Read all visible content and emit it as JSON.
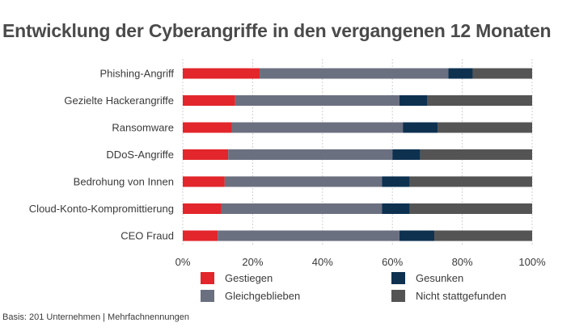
{
  "title": "Entwicklung der Cyberangriffe in den vergangenen 12 Monaten",
  "footnote": "Basis: 201 Unternehmen | Mehrfachnennungen",
  "colors": {
    "gestiegen": "#e2262b",
    "gleichgeblieben": "#6b7080",
    "gesunken": "#0e3150",
    "nicht_stattgefunden": "#545454",
    "grid": "#d0d0d0"
  },
  "legend": [
    {
      "label": "Gestiegen",
      "color_key": "gestiegen"
    },
    {
      "label": "Gesunken",
      "color_key": "gesunken"
    },
    {
      "label": "Gleichgeblieben",
      "color_key": "gleichgeblieben"
    },
    {
      "label": "Nicht stattgefunden",
      "color_key": "nicht_stattgefunden"
    }
  ],
  "chart_data": {
    "type": "bar",
    "orientation": "horizontal",
    "stacked": true,
    "title": "Entwicklung der Cyberangriffe in den vergangenen 12 Monaten",
    "categories": [
      "Phishing-Angriff",
      "Gezielte Hackerangriffe",
      "Ransomware",
      "DDoS-Angriffe",
      "Bedrohung von Innen",
      "Cloud-Konto-Kompromittierung",
      "CEO Fraud"
    ],
    "series": [
      {
        "name": "Gestiegen",
        "color_key": "gestiegen",
        "values": [
          22,
          15,
          14,
          13,
          12,
          11,
          10
        ]
      },
      {
        "name": "Gleichgeblieben",
        "color_key": "gleichgeblieben",
        "values": [
          54,
          47,
          49,
          47,
          45,
          46,
          52
        ]
      },
      {
        "name": "Gesunken",
        "color_key": "gesunken",
        "values": [
          7,
          8,
          10,
          8,
          8,
          8,
          10
        ]
      },
      {
        "name": "Nicht stattgefunden",
        "color_key": "nicht_stattgefunden",
        "values": [
          17,
          30,
          27,
          32,
          35,
          35,
          28
        ]
      }
    ],
    "xlim": [
      0,
      100
    ],
    "xticks": [
      0,
      20,
      40,
      60,
      80,
      100
    ],
    "xtick_labels": [
      "0%",
      "20%",
      "40%",
      "60%",
      "80%",
      "100%"
    ],
    "grid": true,
    "legend_position": "bottom"
  }
}
